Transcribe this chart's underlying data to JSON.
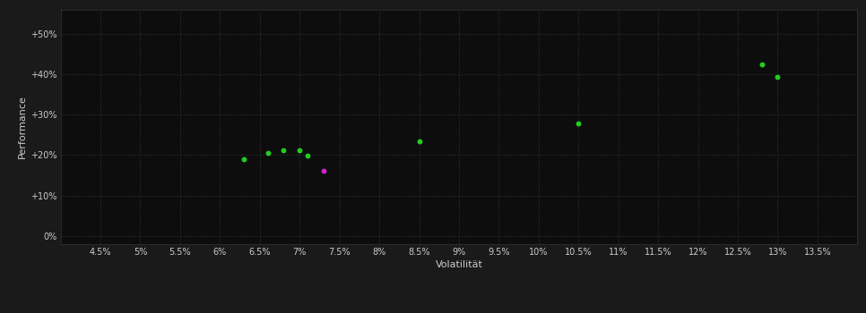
{
  "background_color": "#1a1a1a",
  "plot_bg_color": "#0d0d0d",
  "grid_color": "#2a2a2a",
  "axis_label_color": "#cccccc",
  "tick_label_color": "#cccccc",
  "xlabel": "Volatilität",
  "ylabel": "Performance",
  "xlim": [
    0.04,
    0.14
  ],
  "ylim": [
    -0.02,
    0.56
  ],
  "xticks": [
    0.045,
    0.05,
    0.055,
    0.06,
    0.065,
    0.07,
    0.075,
    0.08,
    0.085,
    0.09,
    0.095,
    0.1,
    0.105,
    0.11,
    0.115,
    0.12,
    0.125,
    0.13,
    0.135
  ],
  "xtick_labels": [
    "4.5%",
    "5%",
    "5.5%",
    "6%",
    "6.5%",
    "7%",
    "7.5%",
    "8%",
    "8.5%",
    "9%",
    "9.5%",
    "10%",
    "10.5%",
    "11%",
    "11.5%",
    "12%",
    "12.5%",
    "13%",
    "13.5%"
  ],
  "yticks": [
    0.0,
    0.1,
    0.2,
    0.3,
    0.4,
    0.5
  ],
  "ytick_labels": [
    "0%",
    "+10%",
    "+20%",
    "+30%",
    "+40%",
    "+50%"
  ],
  "green_points": [
    [
      0.063,
      0.19
    ],
    [
      0.066,
      0.205
    ],
    [
      0.068,
      0.213
    ],
    [
      0.07,
      0.211
    ],
    [
      0.071,
      0.198
    ],
    [
      0.085,
      0.234
    ],
    [
      0.105,
      0.278
    ],
    [
      0.128,
      0.425
    ],
    [
      0.13,
      0.393
    ]
  ],
  "magenta_points": [
    [
      0.073,
      0.162
    ]
  ],
  "dot_size": 18,
  "green_color": "#22cc22",
  "magenta_color": "#cc22cc",
  "figsize": [
    9.66,
    3.5
  ],
  "dpi": 100
}
